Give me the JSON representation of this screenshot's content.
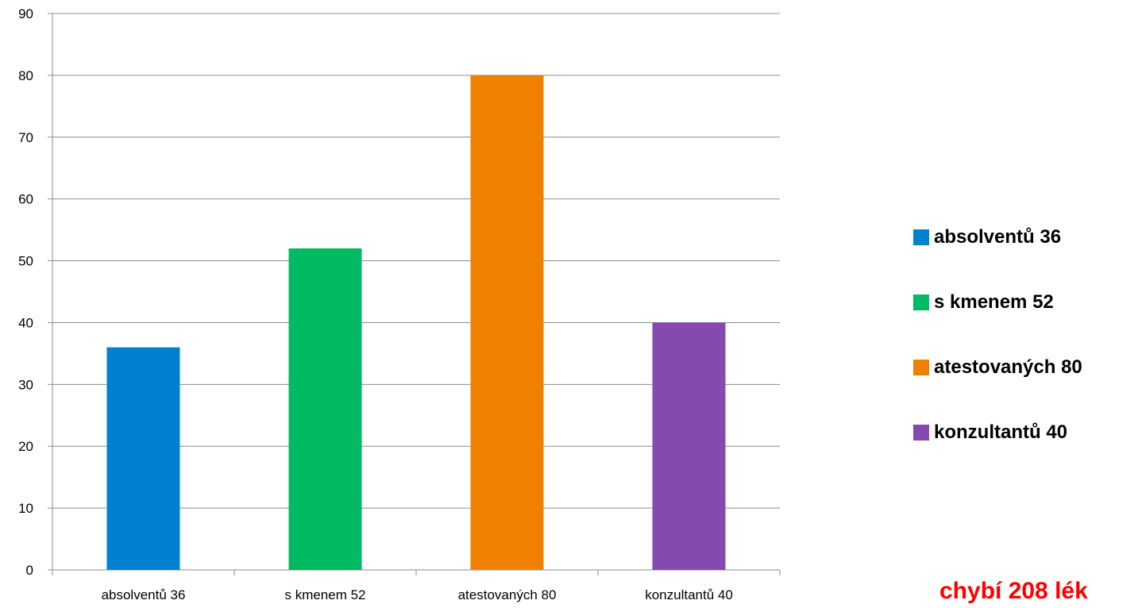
{
  "chart_data": {
    "type": "bar",
    "categories": [
      "absolventů 36",
      "s kmenem 52",
      "atestovaných 80",
      "konzultantů 40"
    ],
    "values": [
      36,
      52,
      80,
      40
    ],
    "colors": [
      "#0081cf",
      "#00b963",
      "#ee8200",
      "#8549b0"
    ],
    "ylim": [
      0,
      90
    ],
    "yticks": [
      "0",
      "10",
      "20",
      "30",
      "40",
      "50",
      "60",
      "70",
      "80",
      "90"
    ],
    "grid": true,
    "legend_position": "right",
    "legend": [
      "absolventů 36",
      "s kmenem 52",
      "atestovaných 80",
      "konzultantů 40"
    ]
  },
  "note": "chybí 208 lék"
}
